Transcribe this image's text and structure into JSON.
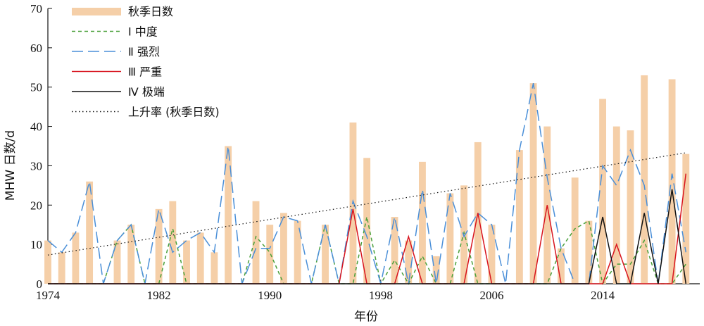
{
  "chart_data": {
    "type": "bar",
    "xlabel": "年份",
    "ylabel": "MHW 日数/d",
    "xlim": [
      1974,
      2021
    ],
    "ylim": [
      0,
      70
    ],
    "x_ticks": [
      1974,
      1982,
      1990,
      1998,
      2006,
      2014
    ],
    "y_ticks": [
      0,
      10,
      20,
      30,
      40,
      50,
      60,
      70
    ],
    "years": [
      1974,
      1975,
      1976,
      1977,
      1978,
      1979,
      1980,
      1981,
      1982,
      1983,
      1984,
      1985,
      1986,
      1987,
      1988,
      1989,
      1990,
      1991,
      1992,
      1993,
      1994,
      1995,
      1996,
      1997,
      1998,
      1999,
      2000,
      2001,
      2002,
      2003,
      2004,
      2005,
      2006,
      2007,
      2008,
      2009,
      2010,
      2011,
      2012,
      2013,
      2014,
      2015,
      2016,
      2017,
      2018,
      2019,
      2020
    ],
    "legend_position": "top-left",
    "colors": {
      "bar": "#f5cfa8",
      "moderate": "#4aa03a",
      "strong": "#4a8fd8",
      "severe": "#d8141e",
      "extreme": "#111111",
      "trend": "#111111"
    },
    "series": [
      {
        "name": "秋季日数",
        "type": "bar",
        "values": [
          11,
          8,
          13,
          26,
          0,
          11,
          15,
          0,
          19,
          21,
          11,
          13,
          8,
          35,
          0,
          21,
          15,
          18,
          16,
          0,
          15,
          0,
          41,
          32,
          0,
          17,
          11,
          31,
          7,
          23,
          25,
          36,
          15,
          0,
          34,
          51,
          40,
          9,
          27,
          16,
          47,
          40,
          39,
          53,
          0,
          52,
          33
        ]
      },
      {
        "name": "Ⅰ 中度",
        "type": "line",
        "style": "dashed-short",
        "values": [
          0,
          0,
          0,
          0,
          0,
          11,
          15,
          0,
          0,
          14,
          0,
          0,
          0,
          0,
          0,
          12,
          8,
          0,
          0,
          0,
          15,
          0,
          0,
          17,
          0,
          6,
          0,
          7,
          0,
          0,
          13,
          0,
          0,
          0,
          0,
          0,
          0,
          9,
          14,
          16,
          0,
          5,
          5,
          11,
          0,
          0,
          5
        ]
      },
      {
        "name": "Ⅱ 强烈",
        "type": "line",
        "style": "dashed-long",
        "values": [
          11,
          8,
          13,
          26,
          0,
          11,
          15,
          0,
          19,
          8,
          11,
          13,
          8,
          35,
          0,
          9,
          9,
          17,
          16,
          0,
          15,
          0,
          21,
          12,
          0,
          17,
          0,
          24,
          0,
          23,
          12,
          18,
          15,
          0,
          34,
          51,
          27,
          9,
          0,
          0,
          30,
          25,
          34,
          25,
          0,
          28,
          8
        ]
      },
      {
        "name": "Ⅲ 严重",
        "type": "line",
        "style": "solid",
        "values": [
          0,
          0,
          0,
          0,
          0,
          0,
          0,
          0,
          0,
          0,
          0,
          0,
          0,
          0,
          0,
          0,
          0,
          0,
          0,
          0,
          0,
          0,
          19,
          0,
          0,
          0,
          12,
          0,
          0,
          0,
          0,
          18,
          0,
          0,
          0,
          0,
          20,
          0,
          0,
          0,
          0,
          10,
          0,
          0,
          0,
          0,
          28
        ]
      },
      {
        "name": "Ⅳ 极端",
        "type": "line",
        "style": "solid",
        "values": [
          0,
          0,
          0,
          0,
          0,
          0,
          0,
          0,
          0,
          0,
          0,
          0,
          0,
          0,
          0,
          0,
          0,
          0,
          0,
          0,
          0,
          0,
          0,
          0,
          0,
          0,
          0,
          0,
          0,
          0,
          0,
          0,
          0,
          0,
          0,
          0,
          0,
          0,
          0,
          0,
          17,
          0,
          0,
          18,
          0,
          24,
          0
        ]
      },
      {
        "name": "上升率 (秋季日数)",
        "type": "trend",
        "style": "dotted",
        "values": [
          7.3,
          33.3
        ]
      }
    ]
  }
}
